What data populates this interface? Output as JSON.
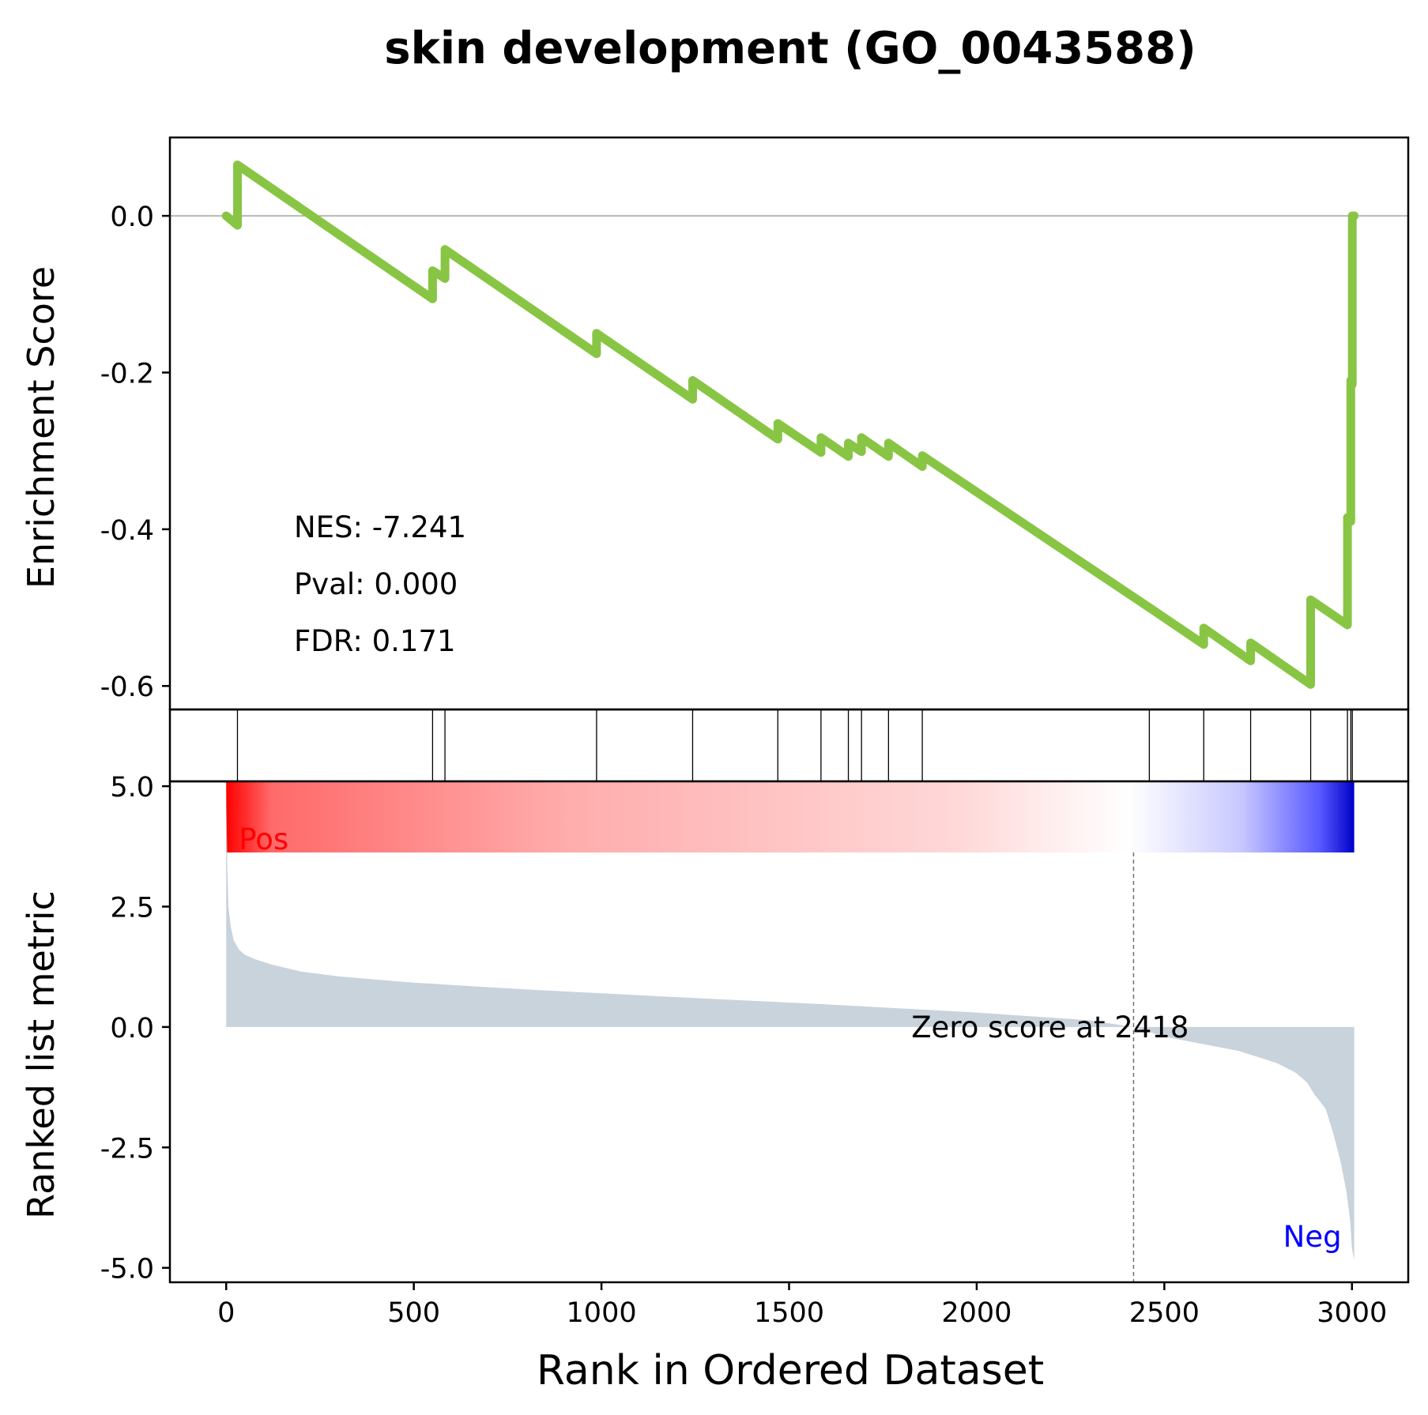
{
  "chart_data": {
    "type": "line",
    "title": "skin development (GO_0043588)",
    "xlabel": "Rank in Ordered Dataset",
    "xlim": [
      -150,
      3150
    ],
    "xticks": [
      0,
      500,
      1000,
      1500,
      2000,
      2500,
      3000
    ],
    "n_genes": 3006,
    "panels": {
      "enrichment": {
        "ylabel": "Enrichment Score",
        "ylim": [
          -0.63,
          0.1
        ],
        "yticks": [
          0.0,
          -0.2,
          -0.4,
          -0.6
        ],
        "ytick_labels": [
          "0.0",
          "-0.2",
          "-0.4",
          "-0.6"
        ],
        "zero_line": true,
        "line_color": "#88c544",
        "stats": [
          {
            "label": "NES",
            "value": "-7.241"
          },
          {
            "label": "Pval",
            "value": "0.000"
          },
          {
            "label": "FDR",
            "value": "0.171"
          }
        ],
        "es_curve": {
          "x": [
            0,
            30,
            30,
            550,
            550,
            583,
            583,
            987,
            987,
            1243,
            1243,
            1470,
            1470,
            1585,
            1585,
            1658,
            1658,
            1693,
            1693,
            1765,
            1765,
            1855,
            1855,
            2460,
            2605,
            2605,
            2730,
            2730,
            2890,
            2890,
            2988,
            2988,
            2997,
            2997,
            3001,
            3001,
            3006
          ],
          "y": [
            0.0,
            -0.012,
            0.065,
            -0.106,
            -0.07,
            -0.08,
            -0.043,
            -0.176,
            -0.15,
            -0.234,
            -0.21,
            -0.285,
            -0.265,
            -0.302,
            -0.283,
            -0.307,
            -0.29,
            -0.301,
            -0.283,
            -0.307,
            -0.29,
            -0.32,
            -0.306,
            -0.5,
            -0.547,
            -0.526,
            -0.568,
            -0.545,
            -0.598,
            -0.49,
            -0.522,
            -0.385,
            -0.39,
            -0.21,
            -0.215,
            0.0,
            0.0
          ]
        }
      },
      "hits": {
        "positions": [
          30,
          550,
          583,
          987,
          1243,
          1470,
          1585,
          1658,
          1693,
          1765,
          1855,
          2460,
          2605,
          2730,
          2890,
          2988,
          2997,
          3001
        ]
      },
      "ranked_metric": {
        "ylabel": "Ranked list metric",
        "ylim": [
          -5.3,
          5.1
        ],
        "yticks": [
          5.0,
          2.5,
          0.0,
          -2.5,
          -5.0
        ],
        "ytick_labels": [
          "5.0",
          "2.5",
          "0.0",
          "-2.5",
          "-5.0"
        ],
        "fill_color": "#c8d3dc",
        "zero_cross": 2418,
        "zero_label": "Zero score at 2418",
        "pos_label": "Pos",
        "neg_label": "Neg",
        "pos_color": "#ff0000",
        "neg_color": "#0000ff",
        "curve": {
          "x": [
            0,
            3,
            6,
            12,
            20,
            35,
            50,
            80,
            120,
            200,
            300,
            500,
            800,
            1200,
            1600,
            2000,
            2300,
            2418,
            2500,
            2600,
            2700,
            2800,
            2850,
            2880,
            2900,
            2930,
            2950,
            2970,
            2985,
            2995,
            3000,
            3006
          ],
          "y": [
            4.9,
            3.3,
            2.5,
            2.1,
            1.8,
            1.6,
            1.5,
            1.4,
            1.3,
            1.15,
            1.05,
            0.92,
            0.78,
            0.62,
            0.47,
            0.3,
            0.14,
            0.0,
            -0.2,
            -0.35,
            -0.5,
            -0.75,
            -0.95,
            -1.15,
            -1.4,
            -1.7,
            -2.2,
            -2.8,
            -3.4,
            -4.0,
            -4.6,
            -4.85
          ]
        }
      }
    }
  }
}
